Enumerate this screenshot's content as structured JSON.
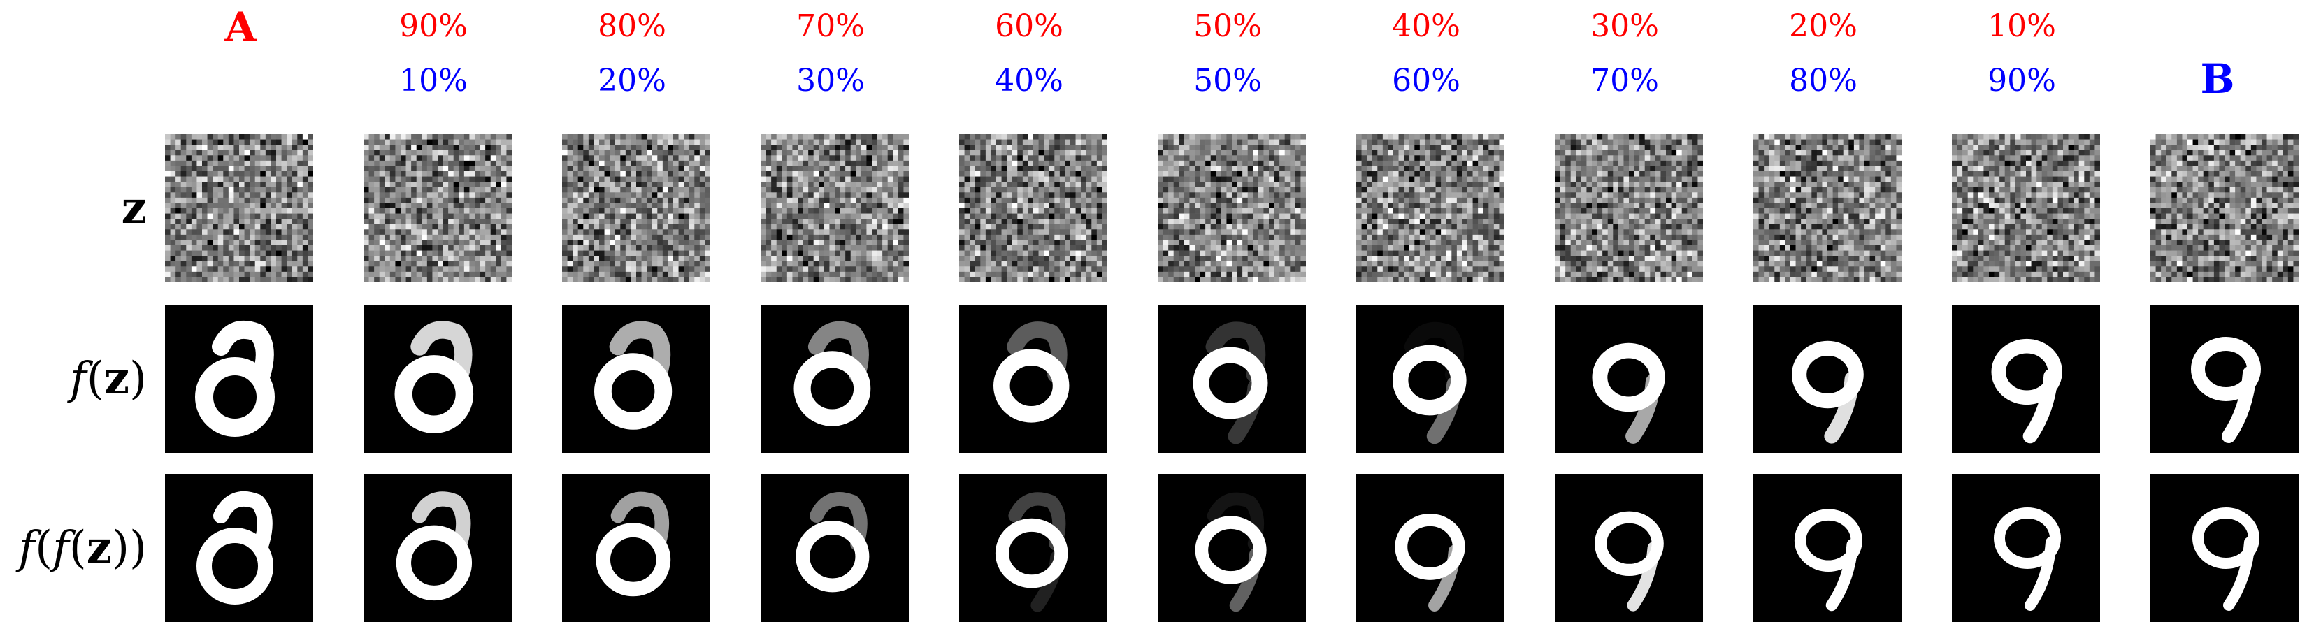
{
  "endpoints": {
    "a": "A",
    "b": "B"
  },
  "mix_a": [
    "90%",
    "80%",
    "70%",
    "60%",
    "50%",
    "40%",
    "30%",
    "20%",
    "10%"
  ],
  "mix_b": [
    "10%",
    "20%",
    "30%",
    "40%",
    "50%",
    "60%",
    "70%",
    "80%",
    "90%"
  ],
  "row_labels": {
    "noise": {
      "var": "z"
    },
    "f": {
      "fn": "f",
      "open": "(",
      "var": "z",
      "close": ")"
    },
    "ff": {
      "fn": "f",
      "open": "(",
      "fn2": "f",
      "open2": "(",
      "var": "z",
      "close": "))"
    }
  },
  "colors": {
    "a": "#ff0000",
    "b": "#0000ff",
    "tile_bg": "#000000",
    "digit": "#ffffff"
  }
}
